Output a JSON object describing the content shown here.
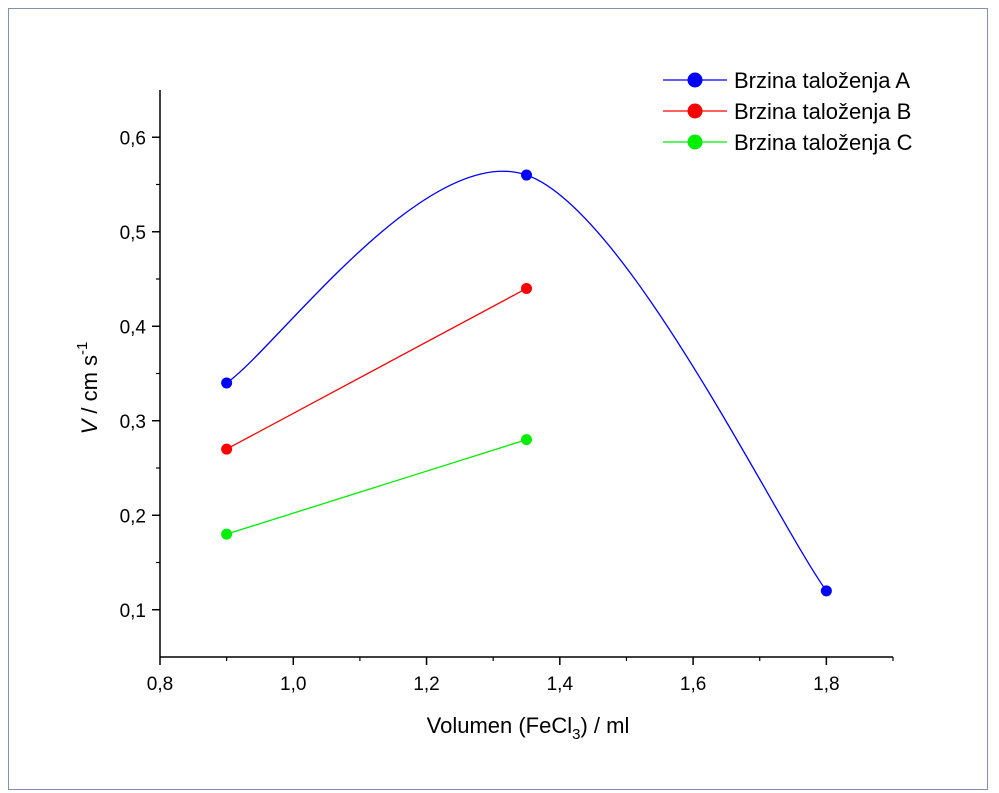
{
  "chart_data": {
    "type": "line",
    "xlabel_main": "Volumen (FeCl",
    "xlabel_sub": "3",
    "xlabel_tail": ") / ml",
    "ylabel_italic": "V",
    "ylabel_main": " / cm s",
    "ylabel_sup": "-1",
    "xlim": [
      0.8,
      1.9
    ],
    "ylim": [
      0.05,
      0.65
    ],
    "xticks": [
      0.8,
      1.0,
      1.2,
      1.4,
      1.6,
      1.8
    ],
    "xtick_labels": [
      "0,8",
      "1,0",
      "1,2",
      "1,4",
      "1,6",
      "1,8"
    ],
    "yticks": [
      0.1,
      0.2,
      0.3,
      0.4,
      0.5,
      0.6
    ],
    "ytick_labels": [
      "0,1",
      "0,2",
      "0,3",
      "0,4",
      "0,5",
      "0,6"
    ],
    "legend_position": "top-right",
    "series": [
      {
        "name": "Brzina taloženja A",
        "color": "#0000ff",
        "curve": "spline",
        "x": [
          0.9,
          1.35,
          1.8
        ],
        "y": [
          0.34,
          0.56,
          0.12
        ]
      },
      {
        "name": "Brzina taloženja B",
        "color": "#ff0000",
        "curve": "linear",
        "x": [
          0.9,
          1.35
        ],
        "y": [
          0.27,
          0.44
        ]
      },
      {
        "name": "Brzina taloženja C",
        "color": "#00ee00",
        "curve": "linear",
        "x": [
          0.9,
          1.35
        ],
        "y": [
          0.18,
          0.28
        ]
      }
    ]
  }
}
